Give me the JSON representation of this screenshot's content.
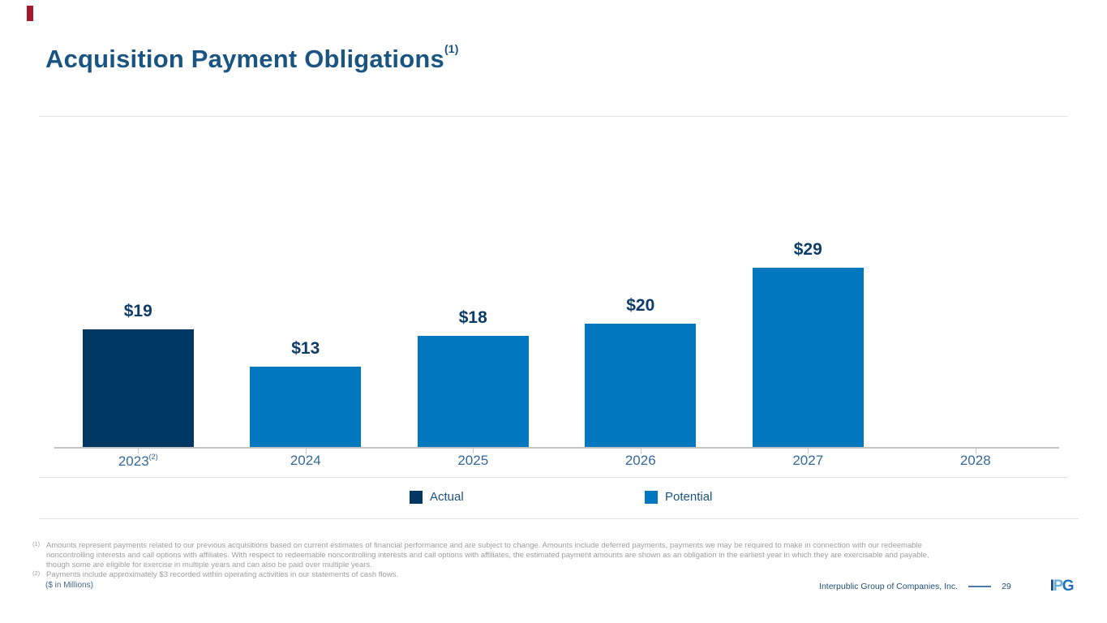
{
  "slide": {
    "title": "Acquisition Payment Obligations",
    "title_superscript": "(1)"
  },
  "accent": {
    "color": "#A6192E"
  },
  "chart_data": {
    "type": "bar",
    "title": "Acquisition Payment Obligations",
    "categories": [
      "2023",
      "2024",
      "2025",
      "2026",
      "2027",
      "2028"
    ],
    "category_superscripts": [
      "(2)",
      "",
      "",
      "",
      "",
      ""
    ],
    "series": [
      {
        "name": "Actual",
        "color": "#003763",
        "values": [
          19,
          null,
          null,
          null,
          null,
          null
        ]
      },
      {
        "name": "Potential",
        "color": "#0077BE",
        "values": [
          null,
          13,
          18,
          20,
          29,
          null
        ]
      }
    ],
    "value_prefix": "$",
    "data_labels": [
      "$19",
      "$13",
      "$18",
      "$20",
      "$29",
      ""
    ],
    "units_note": "($ in Millions)",
    "xlabel": "",
    "ylabel": "",
    "ylim": [
      0,
      30
    ],
    "grid": false,
    "legend_position": "bottom"
  },
  "footnotes": [
    {
      "marker": "(1)",
      "text": "Amounts represent payments related to our previous acquisitions based on current estimates of financial performance and are subject to change. Amounts include deferred payments, payments we may be required to make in connection with our redeemable noncontrolling interests and call options with affiliates. With respect to redeemable noncontrolling interests and call options with affiliates, the estimated payment amounts are shown as an obligation in the earliest year in which they are exercisable and payable, though some are eligible for exercise in multiple years and can also be paid over multiple years."
    },
    {
      "marker": "(2)",
      "text": "Payments include approximately $3 recorded within operating activities in our statements of cash flows."
    }
  ],
  "footer": {
    "units": "($ in Millions)",
    "company": "Interpublic Group of Companies, Inc.",
    "page": "29",
    "logo_letters": [
      {
        "char": "I",
        "color": "#15497B"
      },
      {
        "char": "P",
        "color": "#65ABDC"
      },
      {
        "char": "G",
        "color": "#1D70B7"
      }
    ]
  },
  "colors": {
    "title": "#1A5480",
    "value_label": "#0D3C69",
    "axis_label": "#35689A",
    "axis_line": "#C4C4C4",
    "divider": "#E2E2E2",
    "footnote_text": "#9E9E9E"
  }
}
